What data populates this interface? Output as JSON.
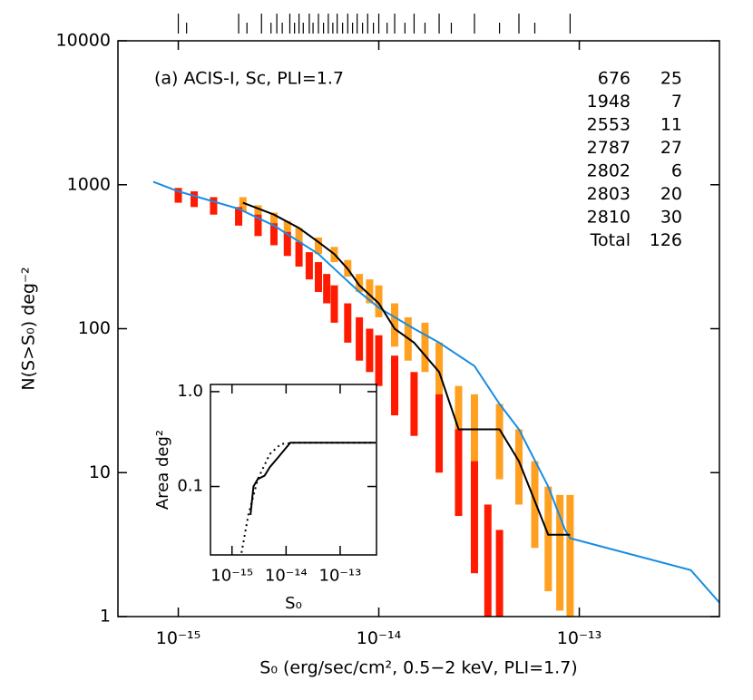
{
  "chart_data": [
    {
      "type": "line",
      "annotation": "(a) ACIS-I, Sc, PLI=1.7",
      "x_label": "S₀ (erg/sec/cm², 0.5−2 keV, PLI=1.7)",
      "y_label": "N(S>S₀) deg⁻²",
      "log_x": true,
      "log_y": true,
      "xlim": [
        5e-16,
        5e-13
      ],
      "xticks": [
        {
          "value": 1e-15,
          "label": "10⁻¹⁵"
        },
        {
          "value": 1e-14,
          "label": "10⁻¹⁴"
        },
        {
          "value": 1e-13,
          "label": "10⁻¹³"
        }
      ],
      "ylim": [
        1,
        10000
      ],
      "yticks": [
        1,
        10,
        100,
        1000,
        10000
      ],
      "table": {
        "rows": [
          [
            "676",
            "25"
          ],
          [
            "1948",
            "7"
          ],
          [
            "2553",
            "11"
          ],
          [
            "2787",
            "27"
          ],
          [
            "2802",
            "6"
          ],
          [
            "2803",
            "20"
          ],
          [
            "2810",
            "30"
          ],
          [
            "Total",
            "126"
          ]
        ]
      },
      "rug_x": [
        1e-15,
        1.1e-15,
        2e-15,
        2.2e-15,
        2.6e-15,
        2.9e-15,
        3.1e-15,
        3.3e-15,
        3.6e-15,
        3.8e-15,
        4e-15,
        4.2e-15,
        4.5e-15,
        4.7e-15,
        5e-15,
        5.3e-15,
        5.6e-15,
        5.9e-15,
        6.2e-15,
        6.6e-15,
        7e-15,
        7.4e-15,
        7.8e-15,
        8.3e-15,
        8.8e-15,
        9.4e-15,
        1e-14,
        1.1e-14,
        1.2e-14,
        1.35e-14,
        1.5e-14,
        1.7e-14,
        2e-14,
        2.3e-14,
        3e-14,
        4e-14,
        5e-14,
        6e-14,
        9e-14
      ],
      "error_bars": [
        {
          "color": "#ffa020",
          "x": [
            2.1e-15,
            2.5e-15,
            3e-15,
            3.5e-15,
            4e-15,
            5e-15,
            6e-15,
            7e-15,
            8e-15,
            9e-15,
            1e-14,
            1.2e-14,
            1.4e-14,
            1.7e-14,
            2e-14,
            2.5e-14,
            3e-14,
            4e-14,
            5e-14,
            6e-14,
            7e-14,
            8e-14,
            9e-14
          ],
          "upper": [
            820,
            720,
            640,
            560,
            500,
            430,
            370,
            300,
            240,
            220,
            200,
            150,
            120,
            110,
            80,
            40,
            35,
            30,
            20,
            12,
            8,
            7,
            7
          ],
          "lower": [
            650,
            580,
            510,
            440,
            390,
            330,
            290,
            230,
            180,
            150,
            120,
            75,
            60,
            50,
            30,
            12,
            10,
            9,
            6,
            3,
            1.5,
            1.1,
            1
          ]
        },
        {
          "color": "#ff1a00",
          "x": [
            1e-15,
            1.2e-15,
            1.5e-15,
            2e-15,
            2.5e-15,
            3e-15,
            3.5e-15,
            4e-15,
            4.5e-15,
            5e-15,
            5.5e-15,
            6e-15,
            7e-15,
            8e-15,
            9e-15,
            1e-14,
            1.2e-14,
            1.5e-14,
            2e-14,
            2.5e-14,
            3e-14,
            3.5e-14,
            4e-14
          ],
          "upper": [
            950,
            900,
            820,
            700,
            620,
            540,
            470,
            400,
            340,
            290,
            240,
            200,
            150,
            120,
            100,
            90,
            65,
            50,
            35,
            20,
            12,
            6,
            4
          ],
          "lower": [
            750,
            700,
            620,
            520,
            440,
            380,
            320,
            270,
            220,
            180,
            150,
            110,
            80,
            60,
            50,
            40,
            25,
            18,
            10,
            5,
            2,
            1,
            1
          ]
        }
      ],
      "series": [
        {
          "color": "#1a8ce0",
          "x": [
            7.5e-16,
            1e-15,
            2e-15,
            3e-15,
            5e-15,
            8e-15,
            1e-14,
            1.5e-14,
            2e-14,
            3e-14,
            4e-14,
            5e-14,
            7e-14,
            8.5e-14,
            9e-14,
            3.6e-13,
            5e-13
          ],
          "values": [
            1050,
            900,
            680,
            520,
            330,
            180,
            140,
            100,
            80,
            55,
            30,
            20,
            8,
            4,
            3.5,
            2.1,
            1.25
          ]
        },
        {
          "color": "#000000",
          "x": [
            2.1e-15,
            3e-15,
            4e-15,
            5e-15,
            6e-15,
            7e-15,
            8e-15,
            1e-14,
            1.2e-14,
            1.5e-14,
            2e-14,
            2.5e-14,
            4e-14,
            5e-14,
            7e-14,
            9e-14
          ],
          "values": [
            750,
            620,
            500,
            400,
            330,
            260,
            200,
            150,
            100,
            80,
            50,
            20,
            20,
            12,
            3.7,
            3.7
          ]
        }
      ]
    },
    {
      "type": "line",
      "x_label": "S₀",
      "y_label": "Area deg²",
      "log_x": true,
      "log_y": true,
      "xlim": [
        4e-16,
        4.7e-13
      ],
      "xticks": [
        {
          "value": 1e-15,
          "label": "10⁻¹⁵"
        },
        {
          "value": 1e-14,
          "label": "10⁻¹⁴"
        },
        {
          "value": 1e-13,
          "label": "10⁻¹³"
        }
      ],
      "ylim": [
        0.019,
        1.19
      ],
      "yticks": [
        {
          "value": 1,
          "label": "1.0"
        },
        0.1
      ],
      "series": [
        {
          "color": "#000000",
          "dashed": false,
          "x": [
            2.2e-15,
            2.5e-15,
            3e-15,
            4e-15,
            5e-15,
            7e-15,
            1.2e-14,
            4.5e-13
          ],
          "values": [
            0.05,
            0.1,
            0.12,
            0.13,
            0.16,
            0.2,
            0.29,
            0.29
          ]
        },
        {
          "color": "#000000",
          "dashed": true,
          "x": [
            1.5e-15,
            2e-15,
            3e-15,
            5e-15,
            8e-15,
            1.5e-14,
            4.5e-13
          ],
          "values": [
            0.02,
            0.05,
            0.12,
            0.22,
            0.28,
            0.29,
            0.29
          ]
        }
      ]
    }
  ]
}
